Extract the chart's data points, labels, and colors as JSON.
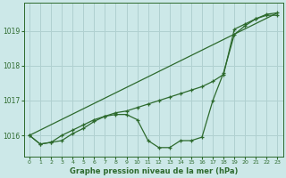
{
  "xlabel": "Graphe pression niveau de la mer (hPa)",
  "bg_color": "#cce8e8",
  "grid_color": "#b0d0d0",
  "line_color": "#2d6a2d",
  "ylim": [
    1015.4,
    1019.8
  ],
  "xlim": [
    -0.5,
    23.5
  ],
  "yticks": [
    1016,
    1017,
    1018,
    1019
  ],
  "xticks": [
    0,
    1,
    2,
    3,
    4,
    5,
    6,
    7,
    8,
    9,
    10,
    11,
    12,
    13,
    14,
    15,
    16,
    17,
    18,
    19,
    20,
    21,
    22,
    23
  ],
  "line1_x": [
    0,
    1,
    2,
    3,
    4,
    5,
    6,
    7,
    8,
    9,
    10,
    11,
    12,
    13,
    14,
    15,
    16,
    17,
    18,
    19,
    20,
    21,
    22,
    23
  ],
  "line1_y": [
    1016.0,
    1015.75,
    1015.8,
    1015.85,
    1016.05,
    1016.2,
    1016.4,
    1016.55,
    1016.6,
    1016.6,
    1016.45,
    1015.85,
    1015.65,
    1015.65,
    1015.85,
    1015.85,
    1015.95,
    1017.0,
    1017.8,
    1018.9,
    1019.15,
    1019.35,
    1019.45,
    1019.45
  ],
  "line2_x": [
    0,
    1,
    2,
    3,
    4,
    5,
    6,
    7,
    8,
    9,
    10,
    11,
    12,
    13,
    14,
    15,
    16,
    17,
    18,
    19,
    20,
    21,
    22,
    23
  ],
  "line2_y": [
    1016.0,
    1015.75,
    1015.8,
    1016.0,
    1016.15,
    1016.3,
    1016.45,
    1016.55,
    1016.65,
    1016.7,
    1016.8,
    1016.9,
    1017.0,
    1017.1,
    1017.2,
    1017.3,
    1017.4,
    1017.55,
    1017.75,
    1019.05,
    1019.2,
    1019.35,
    1019.48,
    1019.52
  ],
  "line3_x": [
    0,
    23
  ],
  "line3_y": [
    1016.0,
    1019.52
  ]
}
